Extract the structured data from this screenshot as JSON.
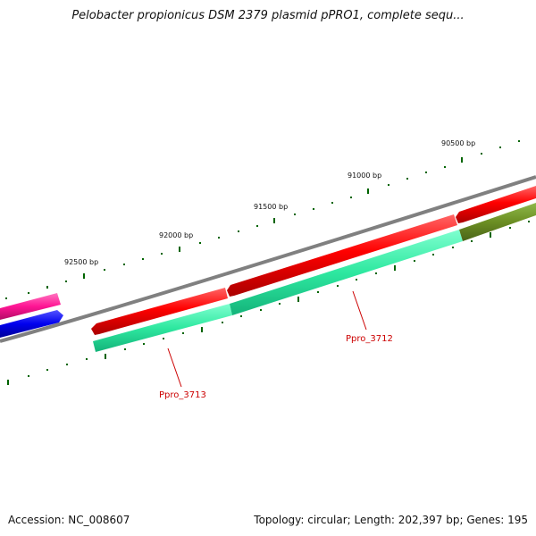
{
  "title": "Pelobacter propionicus DSM 2379 plasmid pPRO1, complete sequ...",
  "footer": {
    "accession": "Accession: NC_008607",
    "summary": "Topology: circular; Length: 202,397 bp; Genes: 195"
  },
  "ticks": [
    {
      "label": "90500 bp"
    },
    {
      "label": "91000 bp"
    },
    {
      "label": "91500 bp"
    },
    {
      "label": "92000 bp"
    },
    {
      "label": "92500 bp"
    }
  ],
  "genes": [
    {
      "id": "Ppro_3712",
      "label": "Ppro_3712"
    },
    {
      "id": "Ppro_3713",
      "label": "Ppro_3713"
    }
  ],
  "colors": {
    "backbone": "#808080",
    "cds_red": "#ff0000",
    "cds_teal": "#2ee8a0",
    "cds_pink": "#ff1493",
    "cds_blue": "#0000ee",
    "cds_olive": "#6b8e23",
    "tick": "#006400",
    "gene_label": "#cc0000"
  }
}
